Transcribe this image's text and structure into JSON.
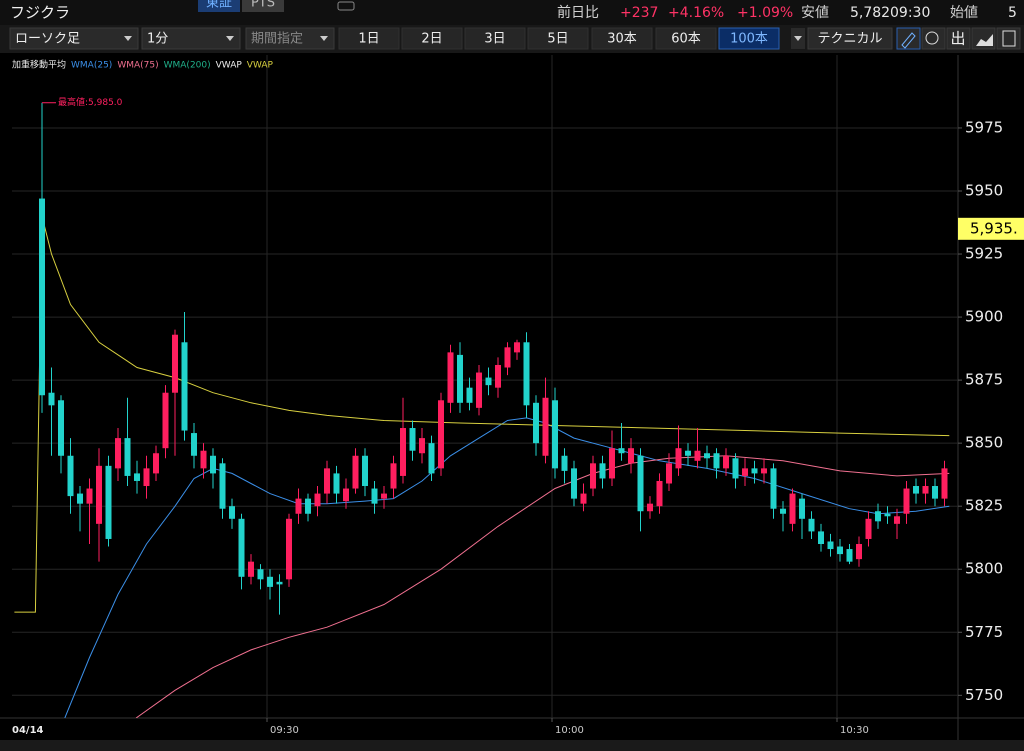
{
  "header": {
    "title": "フジクラ",
    "market_tabs": [
      "東証",
      "PTS"
    ],
    "active_tab": 0,
    "quote": [
      {
        "text": "前日比",
        "color": "#d0d0d0"
      },
      {
        "text": "+237",
        "color": "#ff3366"
      },
      {
        "text": "+4.16%",
        "color": "#ff3366"
      },
      {
        "text": "+1.09%",
        "color": "#ff3366"
      },
      {
        "text": "安値",
        "color": "#d0d0d0"
      },
      {
        "text": "5,782",
        "color": "#e8e8e8"
      },
      {
        "text": "09:30",
        "color": "#e8e8e8"
      },
      {
        "text": "始値",
        "color": "#d0d0d0"
      },
      {
        "text": "5",
        "color": "#e8e8e8"
      }
    ]
  },
  "toolbar": {
    "chart_style": "ローソク足",
    "interval": "1分",
    "period": "期間指定",
    "ranges": [
      "1日",
      "2日",
      "3日",
      "5日",
      "30本",
      "60本",
      "100本"
    ],
    "selected_range": 6,
    "technical": "テクニカル",
    "output_label": "出"
  },
  "chart_data": {
    "type": "candlestick",
    "indicator_groups": [
      "加重移動平均",
      "VWAP"
    ],
    "categories": [
      null,
      null,
      null,
      null,
      null,
      null,
      null,
      null,
      null,
      null,
      null,
      null,
      null,
      null,
      null,
      null,
      null,
      null,
      null,
      null,
      null,
      null,
      null,
      null,
      "09:30",
      null,
      null,
      null,
      null,
      null,
      null,
      null,
      null,
      null,
      null,
      null,
      null,
      null,
      null,
      null,
      null,
      null,
      null,
      null,
      null,
      null,
      null,
      null,
      null,
      null,
      null,
      null,
      null,
      null,
      "10:00",
      null,
      null,
      null,
      null,
      null,
      null,
      null,
      null,
      null,
      null,
      null,
      null,
      null,
      null,
      null,
      null,
      null,
      null,
      null,
      null,
      null,
      null,
      null,
      null,
      null,
      null,
      null,
      null,
      null,
      "10:30",
      null,
      null,
      null,
      null,
      null,
      null,
      null,
      null,
      null,
      null,
      null
    ],
    "date_label": "04/14",
    "open": [
      5947,
      5870,
      5867,
      5845,
      5830,
      5826,
      5818,
      5841,
      5840,
      5852,
      5838,
      5833,
      5838,
      5848,
      5870,
      5890,
      5854,
      5840,
      5845,
      5842,
      5825,
      5820,
      5797,
      5800,
      5797,
      5795,
      5796,
      5822,
      5828,
      5825,
      5830,
      5838,
      5827,
      5832,
      5845,
      5832,
      5828,
      5832,
      5837,
      5856,
      5846,
      5850,
      5840,
      5866,
      5885,
      5872,
      5864,
      5876,
      5872,
      5880,
      5886,
      5890,
      5866,
      5845,
      5867,
      5845,
      5840,
      5826,
      5832,
      5842,
      5836,
      5848,
      5842,
      5845,
      5823,
      5825,
      5834,
      5840,
      5847,
      5843,
      5846,
      5846,
      5840,
      5844,
      5837,
      5840,
      5838,
      5840,
      5824,
      5818,
      5828,
      5820,
      5815,
      5811,
      5809,
      5808,
      5804,
      5812,
      5823,
      5822,
      5818,
      5822,
      5833,
      5830,
      5833,
      5828
    ],
    "high": [
      5985,
      5880,
      5869,
      5852,
      5833,
      5836,
      5848,
      5845,
      5856,
      5868,
      5843,
      5845,
      5849,
      5873,
      5895,
      5902,
      5858,
      5850,
      5848,
      5844,
      5828,
      5822,
      5806,
      5802,
      5800,
      5798,
      5822,
      5832,
      5830,
      5833,
      5843,
      5841,
      5836,
      5848,
      5848,
      5835,
      5833,
      5845,
      5868,
      5859,
      5856,
      5853,
      5870,
      5889,
      5890,
      5876,
      5881,
      5880,
      5884,
      5890,
      5891,
      5894,
      5869,
      5876,
      5872,
      5848,
      5843,
      5834,
      5845,
      5845,
      5855,
      5858,
      5852,
      5848,
      5829,
      5838,
      5846,
      5857,
      5850,
      5856,
      5849,
      5848,
      5848,
      5846,
      5844,
      5843,
      5844,
      5842,
      5827,
      5832,
      5830,
      5823,
      5818,
      5814,
      5812,
      5810,
      5813,
      5823,
      5826,
      5825,
      5824,
      5835,
      5836,
      5836,
      5836,
      5843
    ],
    "low": [
      5862,
      5845,
      5838,
      5822,
      5815,
      5810,
      5803,
      5809,
      5835,
      5833,
      5830,
      5828,
      5835,
      5844,
      5845,
      5851,
      5840,
      5836,
      5832,
      5820,
      5816,
      5792,
      5794,
      5792,
      5788,
      5782,
      5793,
      5818,
      5819,
      5821,
      5826,
      5826,
      5824,
      5830,
      5829,
      5822,
      5824,
      5828,
      5834,
      5843,
      5842,
      5835,
      5837,
      5862,
      5862,
      5863,
      5861,
      5869,
      5868,
      5877,
      5883,
      5860,
      5845,
      5842,
      5836,
      5834,
      5825,
      5823,
      5829,
      5832,
      5833,
      5843,
      5838,
      5815,
      5820,
      5822,
      5831,
      5837,
      5841,
      5840,
      5840,
      5836,
      5837,
      5832,
      5833,
      5834,
      5834,
      5820,
      5815,
      5815,
      5812,
      5812,
      5807,
      5805,
      5803,
      5802,
      5801,
      5809,
      5816,
      5818,
      5812,
      5818,
      5826,
      5826,
      5825,
      5825
    ],
    "close": [
      5869,
      5865,
      5845,
      5829,
      5826,
      5832,
      5841,
      5812,
      5852,
      5837,
      5835,
      5840,
      5846,
      5870,
      5893,
      5855,
      5845,
      5847,
      5838,
      5824,
      5820,
      5797,
      5803,
      5796,
      5793,
      5794,
      5820,
      5828,
      5822,
      5830,
      5840,
      5830,
      5832,
      5845,
      5833,
      5826,
      5830,
      5842,
      5856,
      5847,
      5852,
      5838,
      5867,
      5886,
      5866,
      5866,
      5878,
      5873,
      5881,
      5888,
      5890,
      5865,
      5850,
      5868,
      5840,
      5839,
      5828,
      5830,
      5842,
      5836,
      5848,
      5846,
      5848,
      5823,
      5826,
      5835,
      5842,
      5848,
      5845,
      5847,
      5844,
      5840,
      5845,
      5836,
      5840,
      5838,
      5840,
      5824,
      5822,
      5830,
      5820,
      5815,
      5810,
      5808,
      5806,
      5803,
      5810,
      5820,
      5819,
      5821,
      5821,
      5832,
      5830,
      5833,
      5828,
      5840
    ],
    "up_color": "#ff1f5f",
    "down_color": "#22d3cc",
    "series": [
      {
        "name": "WMA(25)",
        "color": "#3b8fe8",
        "x": [
          2.4,
          5,
          8,
          11,
          14,
          16,
          18,
          20,
          24,
          27,
          30,
          34,
          37,
          40,
          43,
          46,
          49,
          51,
          53,
          56,
          60,
          65,
          70,
          75,
          80,
          85,
          88,
          92,
          95.5
        ],
        "values": [
          5741,
          5765,
          5790,
          5810,
          5825,
          5836,
          5840,
          5838,
          5830,
          5826,
          5826,
          5827,
          5828,
          5835,
          5845,
          5852,
          5859,
          5860,
          5858,
          5852,
          5848,
          5843,
          5840,
          5836,
          5830,
          5824,
          5822,
          5823,
          5825
        ]
      },
      {
        "name": "WMA(75)",
        "color": "#f07090",
        "x": [
          9.9,
          14,
          18,
          22,
          26,
          30,
          36,
          42,
          48,
          54,
          58,
          62,
          66,
          72,
          78,
          84,
          90,
          95.5
        ],
        "values": [
          5741,
          5752,
          5761,
          5768,
          5773,
          5777,
          5786,
          5800,
          5817,
          5832,
          5838,
          5842,
          5844,
          5845,
          5843,
          5839,
          5837,
          5838
        ]
      },
      {
        "name": "WMA(200)",
        "color": "#20b08a",
        "x": [],
        "values": []
      },
      {
        "name": "VWAP",
        "color": "#d8d040",
        "x": [
          -2.9,
          -0.7,
          0,
          1,
          3,
          6,
          10,
          14,
          18,
          22,
          26,
          30,
          36,
          44,
          54,
          64,
          74,
          84,
          95.5
        ],
        "values": [
          5783,
          5783,
          5940,
          5925,
          5905,
          5890,
          5880,
          5876,
          5870,
          5866,
          5863,
          5861,
          5859,
          5858,
          5857,
          5856,
          5855,
          5854,
          5853
        ]
      }
    ],
    "annotation": {
      "text": "最高値:5,985.0",
      "value": 5985,
      "color": "#ff2060"
    },
    "price_tag": {
      "value": 5935,
      "label": "5,935."
    },
    "ylim": [
      5741,
      5996
    ],
    "yticks": [
      5750,
      5775,
      5800,
      5825,
      5850,
      5875,
      5900,
      5925,
      5950,
      5975
    ],
    "grid": true
  }
}
